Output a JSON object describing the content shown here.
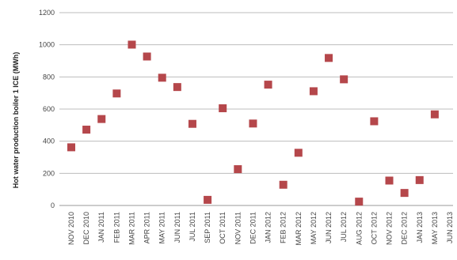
{
  "chart_data": {
    "type": "scatter",
    "title": "",
    "xlabel": "",
    "ylabel": "Hot water production boiler 1 ICE (MWh)",
    "ylim": [
      0,
      1200
    ],
    "yticks": [
      0,
      200,
      400,
      600,
      800,
      1000,
      1200
    ],
    "ytick_labels": [
      "0",
      "200",
      "400",
      "600",
      "800",
      "1000",
      "1200"
    ],
    "grid": true,
    "legend": "none",
    "marker_color": "#b5474b",
    "categories": [
      "NOV 2010",
      "DEC 2010",
      "JAN 2011",
      "FEB 2011",
      "MAR 2011",
      "APR 2011",
      "MAY 2011",
      "JUN 2011",
      "JUL 2011",
      "SEP 2011",
      "OCT 2011",
      "NOV 2011",
      "DEC 2011",
      "JAN 2012",
      "FEB 2012",
      "MAR 2012",
      "MAY 2012",
      "JUN 2012",
      "JUL 2012",
      "AUG 2012",
      "OCT 2012",
      "NOV 2012",
      "DEC 2012",
      "JAN 2013",
      "MAY 2013",
      "JUN 2013"
    ],
    "values": [
      362,
      472,
      538,
      697,
      1001,
      927,
      795,
      737,
      508,
      35,
      605,
      226,
      510,
      752,
      129,
      328,
      711,
      918,
      785,
      24,
      524,
      155,
      78,
      158,
      567,
      null
    ]
  }
}
